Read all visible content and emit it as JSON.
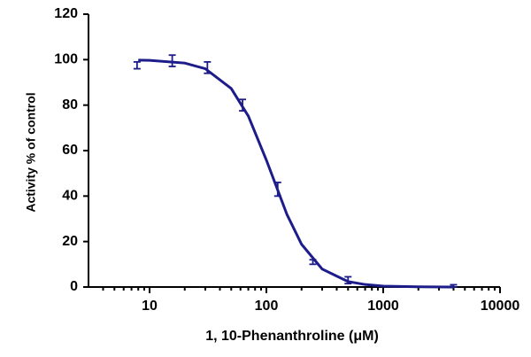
{
  "chart_data": {
    "type": "dose-response",
    "x_label": "1, 10-Phenanthroline  (μM)",
    "y_label": "Activity % of control",
    "log_x": true,
    "color": "#1c1c8a",
    "xlim": [
      3,
      10000
    ],
    "ylim": [
      0,
      120
    ],
    "xticks": [
      10,
      100,
      1000,
      10000
    ],
    "xminorticks": [
      4,
      5,
      6,
      7,
      8,
      9,
      20,
      30,
      40,
      50,
      60,
      70,
      80,
      90,
      200,
      300,
      400,
      500,
      600,
      700,
      800,
      900,
      2000,
      3000,
      4000,
      5000,
      6000,
      7000,
      8000,
      9000
    ],
    "yticks": [
      0,
      20,
      40,
      60,
      80,
      100,
      120
    ],
    "points": {
      "x": [
        7.8125,
        15.625,
        31.25,
        62.5,
        125,
        250,
        500,
        4000
      ],
      "values": [
        97.5,
        99.5,
        96.5,
        80,
        43,
        11,
        3,
        0.5
      ],
      "errors": [
        1.5,
        2.5,
        2.5,
        2.5,
        3,
        1,
        1.5,
        0.5
      ]
    },
    "curve": {
      "x": [
        8,
        10,
        20,
        30,
        50,
        70,
        100,
        150,
        200,
        300,
        500,
        700,
        1000,
        2000,
        4000
      ],
      "values": [
        99.8,
        99.7,
        98.5,
        96.0,
        87.3,
        75.2,
        55.8,
        31.9,
        18.8,
        7.9,
        2.4,
        1.1,
        0.4,
        0.1,
        0
      ]
    }
  }
}
